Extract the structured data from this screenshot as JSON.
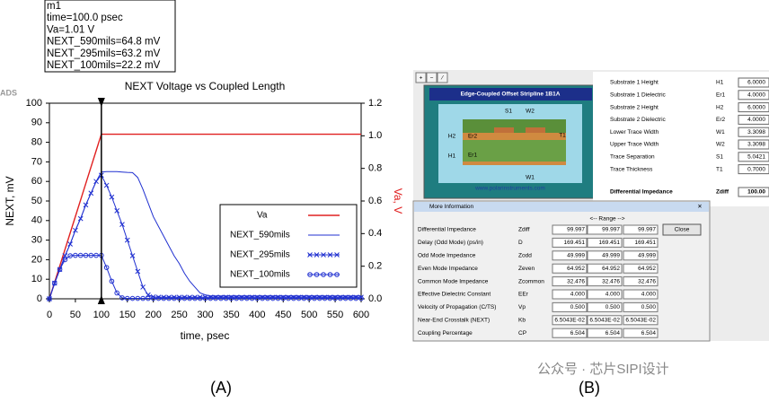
{
  "chart_data": {
    "type": "line",
    "title": "NEXT Voltage vs Coupled Length",
    "xlabel": "time, psec",
    "ylabel": "NEXT, mV",
    "y2label": "Va, V",
    "x": [
      0,
      10,
      20,
      30,
      40,
      50,
      60,
      70,
      80,
      90,
      100,
      110,
      120,
      130,
      140,
      150,
      160,
      170,
      180,
      190,
      200,
      210,
      220,
      230,
      240,
      250,
      260,
      270,
      280,
      290,
      300,
      310,
      320,
      330,
      340,
      350,
      360,
      370,
      380,
      390,
      400,
      410,
      420,
      430,
      440,
      450,
      460,
      470,
      480,
      490,
      500,
      510,
      520,
      530,
      540,
      550,
      560,
      570,
      580,
      590,
      600
    ],
    "series": [
      {
        "name": "Va",
        "color": "#e02020",
        "axis": "y2",
        "marker": "none",
        "values": [
          0,
          0.101,
          0.202,
          0.303,
          0.404,
          0.505,
          0.606,
          0.707,
          0.808,
          0.909,
          1.01,
          1.01,
          1.01,
          1.01,
          1.01,
          1.01,
          1.01,
          1.01,
          1.01,
          1.01,
          1.01,
          1.01,
          1.01,
          1.01,
          1.01,
          1.01,
          1.01,
          1.01,
          1.01,
          1.01,
          1.01,
          1.01,
          1.01,
          1.01,
          1.01,
          1.01,
          1.01,
          1.01,
          1.01,
          1.01,
          1.01,
          1.01,
          1.01,
          1.01,
          1.01,
          1.01,
          1.01,
          1.01,
          1.01,
          1.01,
          1.01,
          1.01,
          1.01,
          1.01,
          1.01,
          1.01,
          1.01,
          1.01,
          1.01,
          1.01,
          1.01
        ]
      },
      {
        "name": "NEXT_590mils",
        "color": "#2030d0",
        "marker": "none",
        "values": [
          0,
          8,
          15,
          22,
          28,
          35,
          41,
          48,
          54,
          60,
          64.8,
          65,
          65,
          65,
          64.8,
          64.6,
          64.5,
          62,
          56,
          49,
          42,
          37,
          32,
          27,
          22,
          18,
          13,
          9,
          6,
          3,
          2,
          1.5,
          1.5,
          1.5,
          1.5,
          1.5,
          1.5,
          1.5,
          1.5,
          1.5,
          1.5,
          1.5,
          1.5,
          1.5,
          1.5,
          1.5,
          1.5,
          1.5,
          1.5,
          1.5,
          1.5,
          1.5,
          1.5,
          1.5,
          1.5,
          1.5,
          1.5,
          1.5,
          1.5,
          1.5,
          1.5
        ]
      },
      {
        "name": "NEXT_295mils",
        "color": "#2030d0",
        "marker": "x",
        "values": [
          0,
          8,
          15,
          22,
          28,
          35,
          41,
          48,
          54,
          60,
          63.2,
          58,
          52,
          45,
          38,
          30,
          22,
          14,
          6,
          2,
          1,
          0.8,
          0.8,
          0.8,
          0.8,
          0.8,
          0.8,
          0.8,
          0.8,
          0.8,
          0.8,
          0.8,
          0.8,
          0.8,
          0.8,
          0.8,
          0.8,
          0.8,
          0.8,
          0.8,
          0.8,
          0.8,
          0.8,
          0.8,
          0.8,
          0.8,
          0.8,
          0.8,
          0.8,
          0.8,
          0.8,
          0.8,
          0.8,
          0.8,
          0.8,
          0.8,
          0.8,
          0.8,
          0.8,
          0.8,
          0.8
        ]
      },
      {
        "name": "NEXT_100mils",
        "color": "#2030d0",
        "marker": "o",
        "values": [
          0,
          8,
          15,
          20,
          22,
          22.2,
          22.2,
          22.2,
          22.2,
          22.2,
          22.2,
          16,
          9,
          3,
          0.5,
          0.2,
          0.2,
          0.2,
          0.2,
          0.2,
          0.2,
          0.2,
          0.2,
          0.2,
          0.2,
          0.2,
          0.2,
          0.2,
          0.2,
          0.2,
          0.2,
          0.2,
          0.2,
          0.2,
          0.2,
          0.2,
          0.2,
          0.2,
          0.2,
          0.2,
          0.2,
          0.2,
          0.2,
          0.2,
          0.2,
          0.2,
          0.2,
          0.2,
          0.2,
          0.2,
          0.2,
          0.2,
          0.2,
          0.2,
          0.2,
          0.2,
          0.2,
          0.2,
          0.2,
          0.2,
          0.2
        ]
      }
    ],
    "xlim": [
      0,
      600
    ],
    "xticks": [
      0,
      50,
      100,
      150,
      200,
      250,
      300,
      350,
      400,
      450,
      500,
      550,
      600
    ],
    "ylim": [
      0,
      100
    ],
    "yticks": [
      0,
      10,
      20,
      30,
      40,
      50,
      60,
      70,
      80,
      90,
      100
    ],
    "y2lim": [
      0,
      1.2
    ],
    "y2ticks": [
      {
        "value": 0,
        "label": "0.0"
      },
      0.2,
      0.4,
      0.6,
      0.8,
      {
        "value": 1,
        "label": "1.0"
      },
      1.2
    ],
    "grid": false,
    "legend": "lower right",
    "marker": {
      "x": 100,
      "lines": [
        "m1",
        "time=100.0 psec",
        "Va=1.01  V",
        "NEXT_590mils=64.8 mV",
        "NEXT_295mils=63.2 mV",
        "NEXT_100mils=22.2 mV"
      ]
    }
  },
  "ads_label": "ADS",
  "panel_labels": [
    "(A)",
    "(B)"
  ],
  "app": {
    "toolbar": [
      "+",
      "−",
      "⁄"
    ],
    "diagram_title": "Edge-Coupled Offset Stripline 1B1A",
    "diagram_labels": [
      "S1",
      "W2",
      "H2",
      "Er2",
      "T1",
      "H1",
      "Er1",
      "W1"
    ],
    "url": "www.polarinstruments.com",
    "params": [
      [
        "Substrate 1 Height",
        "H1",
        "6.0000"
      ],
      [
        "Substrate 1 Dielectric",
        "Er1",
        "4.0000"
      ],
      [
        "Substrate 2 Height",
        "H2",
        "6.0000"
      ],
      [
        "Substrate 2 Dielectric",
        "Er2",
        "4.0000"
      ],
      [
        "Lower Trace Width",
        "W1",
        "3.3098"
      ],
      [
        "Upper Trace Width",
        "W2",
        "3.3098"
      ],
      [
        "Trace Separation",
        "S1",
        "5.0421"
      ],
      [
        "Trace Thickness",
        "T1",
        "0.7000"
      ]
    ],
    "result": [
      "Differential Impedance",
      "Zdiff",
      "100.00"
    ],
    "dialog": {
      "title": "More Information",
      "close_x": "✕",
      "range_header": "<-- Range -->",
      "close": "Close",
      "rows": [
        [
          "Differential Impedance",
          "Zdiff",
          "99.997",
          "99.997",
          "99.997"
        ],
        [
          "Delay (Odd Mode) (ps/in)",
          "D",
          "169.451",
          "169.451",
          "169.451"
        ],
        [
          "Odd Mode Impedance",
          "Zodd",
          "49.999",
          "49.999",
          "49.999"
        ],
        [
          "Even Mode Impedance",
          "Zeven",
          "64.952",
          "64.952",
          "64.952"
        ],
        [
          "Common Mode Impedance",
          "Zcommon",
          "32.476",
          "32.476",
          "32.476"
        ],
        [
          "Effective Dielectric Constant",
          "EEr",
          "4.000",
          "4.000",
          "4.000"
        ],
        [
          "Velocity of Propagation (C/TS)",
          "Vp",
          "0.500",
          "0.500",
          "0.500"
        ],
        [
          "Near-End Crosstalk (NEXT)",
          "Kb",
          "6.5043E-02",
          "6.5043E-02",
          "6.5043E-02"
        ],
        [
          "Coupling Percentage",
          "CP",
          "6.504",
          "6.504",
          "6.504"
        ]
      ]
    }
  },
  "watermark": "公众号 · 芯片SIPI设计"
}
